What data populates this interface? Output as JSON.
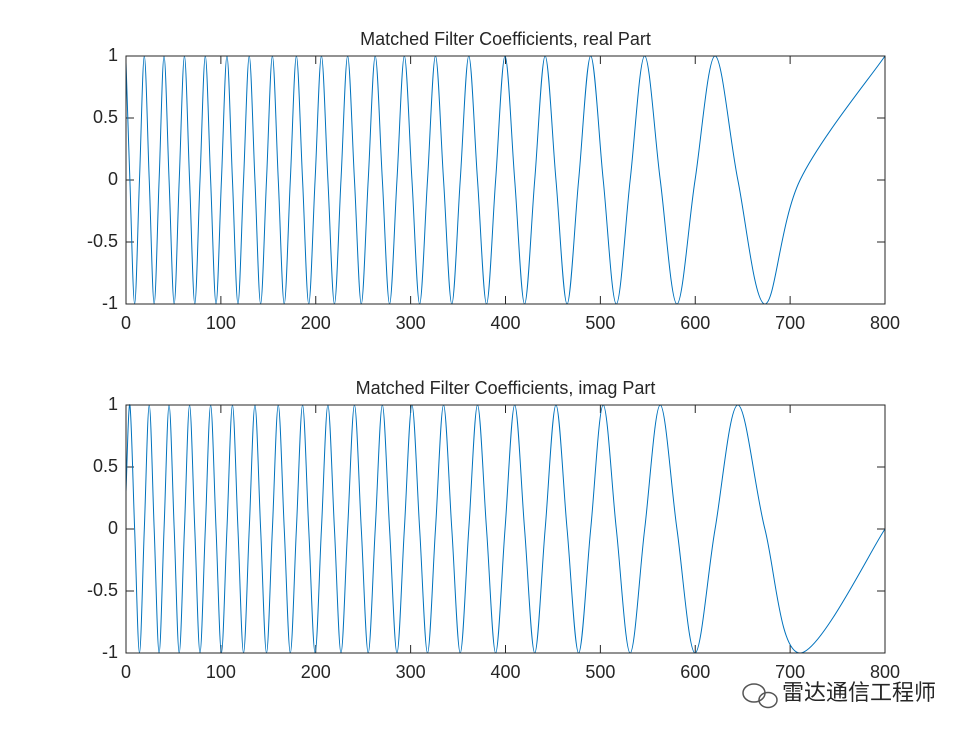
{
  "chart_data": [
    {
      "type": "line",
      "title": "Matched Filter Coefficients, real Part",
      "x": [
        0,
        4.1,
        9.1,
        14.2,
        19.3,
        24.5,
        29.7,
        34.9,
        40.1,
        45.4,
        50.8,
        56.1,
        61.6,
        67.0,
        72.5,
        78.0,
        83.6,
        89.2,
        94.9,
        100.6,
        106.4,
        112.2,
        118.0,
        123.9,
        129.9,
        135.9,
        141.9,
        148.1,
        154.3,
        160.5,
        166.8,
        173.2,
        179.6,
        186.1,
        192.6,
        199.3,
        206.0,
        212.8,
        219.7,
        226.6,
        233.6,
        240.8,
        248.0,
        255.3,
        262.7,
        270.2,
        277.8,
        285.6,
        293.4,
        301.4,
        309.5,
        317.8,
        326.2,
        334.7,
        343.4,
        352.3,
        361.3,
        370.5,
        380.0,
        389.6,
        399.5,
        409.7,
        420.1,
        430.8,
        441.8,
        453.2,
        464.9,
        477.1,
        489.8,
        503.0,
        516.8,
        531.4,
        546.7,
        563.1,
        580.7,
        599.8,
        620.9,
        644.9,
        673.4,
        710.5,
        800
      ],
      "series": [
        {
          "color": "#0072bd",
          "values": [
            0.95,
            0,
            -1,
            0,
            1,
            0,
            -1,
            0,
            1,
            0,
            -1,
            0,
            1,
            0,
            -1,
            0,
            1,
            0,
            -1,
            0,
            1,
            0,
            -1,
            0,
            1,
            0,
            -1,
            0,
            1,
            0,
            -1,
            0,
            1,
            0,
            -1,
            0,
            1,
            0,
            -1,
            0,
            1,
            0,
            -1,
            0,
            1,
            0,
            -1,
            0,
            1,
            0,
            -1,
            0,
            1,
            0,
            -1,
            0,
            1,
            0,
            -1,
            0,
            1,
            0,
            -1,
            0,
            1,
            0,
            -1,
            0,
            1,
            0,
            -1,
            0,
            1,
            0,
            -1,
            0,
            1,
            0,
            -1,
            0,
            1
          ]
        }
      ],
      "xlim": [
        0,
        800
      ],
      "xticks": [
        0,
        100,
        200,
        300,
        400,
        500,
        600,
        700,
        800
      ],
      "ylim": [
        -1,
        1
      ],
      "yticks": [
        -1,
        -0.5,
        0,
        0.5,
        1
      ],
      "grid": false
    },
    {
      "type": "line",
      "title": "Matched Filter Coefficients, imag Part",
      "x": [
        0,
        4.1,
        9.1,
        14.2,
        19.3,
        24.5,
        29.7,
        34.9,
        40.1,
        45.4,
        50.8,
        56.1,
        61.6,
        67.0,
        72.5,
        78.0,
        83.6,
        89.2,
        94.9,
        100.6,
        106.4,
        112.2,
        118.0,
        123.9,
        129.9,
        135.9,
        141.9,
        148.1,
        154.3,
        160.5,
        166.8,
        173.2,
        179.6,
        186.1,
        192.6,
        199.3,
        206.0,
        212.8,
        219.7,
        226.6,
        233.6,
        240.8,
        248.0,
        255.3,
        262.7,
        270.2,
        277.8,
        285.6,
        293.4,
        301.4,
        309.5,
        317.8,
        326.2,
        334.7,
        343.4,
        352.3,
        361.3,
        370.5,
        380.0,
        389.6,
        399.5,
        409.7,
        420.1,
        430.8,
        441.8,
        453.2,
        464.9,
        477.1,
        489.8,
        503.0,
        516.8,
        531.4,
        546.7,
        563.1,
        580.7,
        599.8,
        620.9,
        644.9,
        673.4,
        710.5,
        800
      ],
      "series": [
        {
          "color": "#0072bd",
          "values": [
            0.3,
            1,
            0,
            -1,
            0,
            1,
            0,
            -1,
            0,
            1,
            0,
            -1,
            0,
            1,
            0,
            -1,
            0,
            1,
            0,
            -1,
            0,
            1,
            0,
            -1,
            0,
            1,
            0,
            -1,
            0,
            1,
            0,
            -1,
            0,
            1,
            0,
            -1,
            0,
            1,
            0,
            -1,
            0,
            1,
            0,
            -1,
            0,
            1,
            0,
            -1,
            0,
            1,
            0,
            -1,
            0,
            1,
            0,
            -1,
            0,
            1,
            0,
            -1,
            0,
            1,
            0,
            -1,
            0,
            1,
            0,
            -1,
            0,
            1,
            0,
            -1,
            0,
            1,
            0,
            -1,
            0,
            1,
            0,
            -1,
            0
          ]
        }
      ],
      "xlim": [
        0,
        800
      ],
      "xticks": [
        0,
        100,
        200,
        300,
        400,
        500,
        600,
        700,
        800
      ],
      "ylim": [
        -1,
        1
      ],
      "yticks": [
        -1,
        -0.5,
        0,
        0.5,
        1
      ],
      "grid": false
    }
  ],
  "watermark": "雷达通信工程师"
}
